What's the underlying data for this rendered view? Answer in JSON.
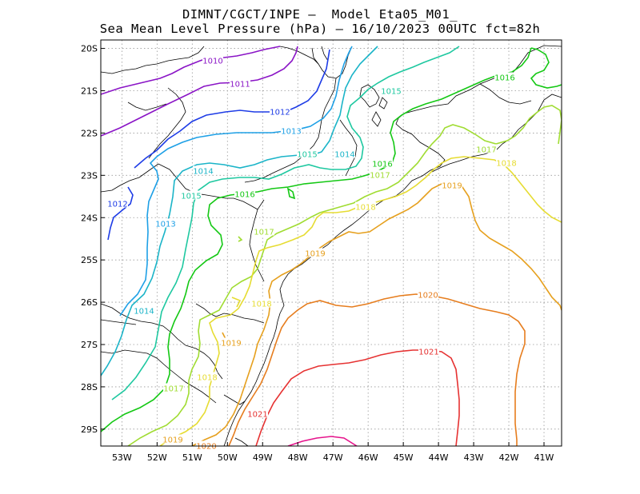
{
  "header": {
    "line1": "DIMNT/CGCT/INPE –  Model Eta05_M01_",
    "line2": "Sea Mean Level Pressure (hPa) – 16/10/2023 00UTC fct=82h"
  },
  "map": {
    "lon_range": [
      -53.6,
      -40.5
    ],
    "lat_range": [
      -29.4,
      -19.8
    ],
    "lon_ticks": [
      -53,
      -52,
      -51,
      -50,
      -49,
      -48,
      -47,
      -46,
      -45,
      -44,
      -43,
      -42,
      -41
    ],
    "lat_ticks": [
      -20,
      -21,
      -22,
      -23,
      -24,
      -25,
      -26,
      -27,
      -28,
      -29
    ],
    "lon_tick_labels": [
      "53W",
      "52W",
      "51W",
      "50W",
      "49W",
      "48W",
      "47W",
      "46W",
      "45W",
      "44W",
      "43W",
      "42W",
      "41W"
    ],
    "lat_tick_labels": [
      "20S",
      "21S",
      "22S",
      "23S",
      "24S",
      "25S",
      "26S",
      "27S",
      "28S",
      "29S"
    ],
    "grid": true,
    "isobar_interval_hPa": 1,
    "isobar_colors": {
      "1010": "#8a14c6",
      "1011": "#8a14c6",
      "1012": "#1e3ce6",
      "1013": "#1ea0e6",
      "1014": "#1ab4c8",
      "1015": "#1ec8a0",
      "1016": "#14c814",
      "1017": "#a0dc32",
      "1018": "#e6dc32",
      "1019": "#e6a01e",
      "1020": "#e67d1e",
      "1021": "#e63232",
      "1022": "#e6148c"
    },
    "isobar_labels": [
      {
        "text": "1010",
        "value": 1010
      },
      {
        "text": "1011",
        "value": 1011
      },
      {
        "text": "1012",
        "value": 1012
      },
      {
        "text": "1012",
        "value": 1012
      },
      {
        "text": "1013",
        "value": 1013
      },
      {
        "text": "1013",
        "value": 1013
      },
      {
        "text": "1014",
        "value": 1014
      },
      {
        "text": "1014",
        "value": 1014
      },
      {
        "text": "1014",
        "value": 1014
      },
      {
        "text": "1015",
        "value": 1015
      },
      {
        "text": "1015",
        "value": 1015
      },
      {
        "text": "1015",
        "value": 1015
      },
      {
        "text": "1016",
        "value": 1016
      },
      {
        "text": "1016",
        "value": 1016
      },
      {
        "text": "1016",
        "value": 1016
      },
      {
        "text": "1017",
        "value": 1017
      },
      {
        "text": "1017",
        "value": 1017
      },
      {
        "text": "1017",
        "value": 1017
      },
      {
        "text": "1017",
        "value": 1017
      },
      {
        "text": "1018",
        "value": 1018
      },
      {
        "text": "1018",
        "value": 1018
      },
      {
        "text": "1018",
        "value": 1018
      },
      {
        "text": "1018",
        "value": 1018
      },
      {
        "text": "1019",
        "value": 1019
      },
      {
        "text": "1019",
        "value": 1019
      },
      {
        "text": "1019",
        "value": 1019
      },
      {
        "text": "1019",
        "value": 1019
      },
      {
        "text": "1020",
        "value": 1020
      },
      {
        "text": "1020",
        "value": 1020
      },
      {
        "text": "1021",
        "value": 1021
      },
      {
        "text": "1021",
        "value": 1021
      }
    ]
  }
}
